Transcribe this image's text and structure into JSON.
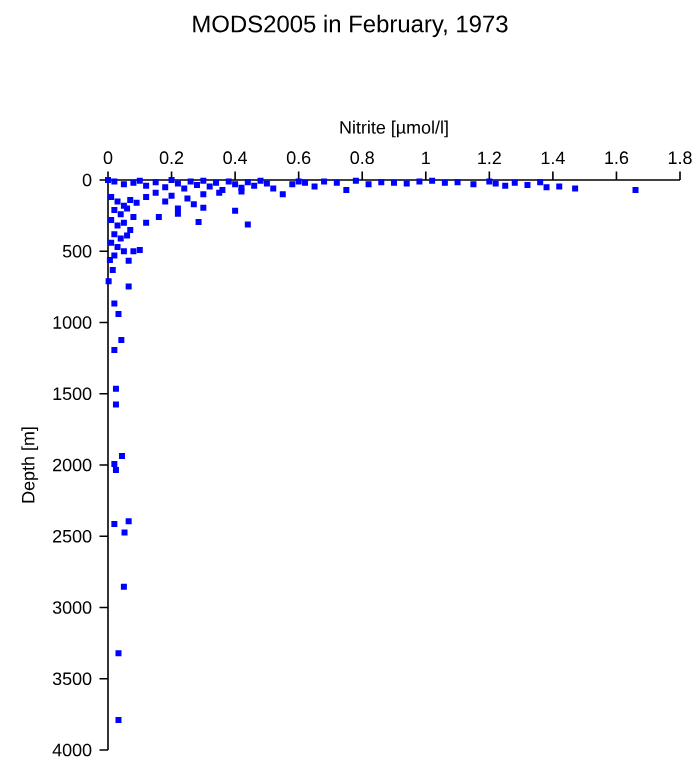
{
  "chart_data": {
    "type": "scatter",
    "title": "MODS2005 in February, 1973",
    "xlabel": "Nitrite [µmol/l]",
    "ylabel": "Depth [m]",
    "xlim": [
      0,
      1.8
    ],
    "xticks": [
      0,
      0.2,
      0.4,
      0.6,
      0.8,
      1,
      1.2,
      1.4,
      1.6,
      1.8
    ],
    "ylim": [
      4000,
      0
    ],
    "yticks": [
      0,
      500,
      1000,
      1500,
      2000,
      2500,
      3000,
      3500,
      4000
    ],
    "marker": "square",
    "grid": false,
    "series": [
      {
        "color": "#0000ff",
        "x": [
          0.0,
          0.02,
          0.05,
          0.08,
          0.1,
          0.12,
          0.15,
          0.18,
          0.2,
          0.22,
          0.24,
          0.26,
          0.28,
          0.3,
          0.32,
          0.34,
          0.36,
          0.38,
          0.4,
          0.42,
          0.44,
          0.46,
          0.48,
          0.5,
          0.52,
          0.55,
          0.58,
          0.6,
          0.62,
          0.65,
          0.68,
          0.72,
          0.75,
          0.78,
          0.82,
          0.86,
          0.9,
          0.94,
          0.98,
          1.02,
          1.06,
          1.1,
          1.15,
          1.2,
          1.22,
          1.25,
          1.28,
          1.32,
          1.36,
          1.38,
          1.42,
          1.47,
          1.66,
          0.12,
          0.15,
          0.18,
          0.2,
          0.25,
          0.3,
          0.35,
          0.42,
          0.27,
          0.22,
          0.3,
          0.4,
          0.285,
          0.44,
          0.22,
          0.16,
          0.12,
          0.01,
          0.03,
          0.05,
          0.07,
          0.09,
          0.02,
          0.04,
          0.06,
          0.08,
          0.01,
          0.03,
          0.05,
          0.07,
          0.02,
          0.04,
          0.06,
          0.01,
          0.03,
          0.05,
          0.02,
          0.1,
          0.08,
          0.006,
          0.065,
          0.015,
          0.002,
          0.065,
          0.02,
          0.033,
          0.042,
          0.02,
          0.025,
          0.025,
          0.044,
          0.02,
          0.025,
          0.02,
          0.065,
          0.052,
          0.05,
          0.033,
          0.033
        ],
        "values": [
          0,
          10,
          30,
          20,
          5,
          40,
          15,
          50,
          0,
          25,
          60,
          10,
          35,
          5,
          45,
          20,
          70,
          10,
          30,
          55,
          15,
          40,
          5,
          25,
          60,
          100,
          30,
          10,
          20,
          45,
          10,
          20,
          70,
          5,
          30,
          15,
          20,
          25,
          10,
          5,
          20,
          15,
          30,
          10,
          25,
          40,
          20,
          35,
          15,
          50,
          45,
          60,
          70,
          120,
          90,
          150,
          110,
          130,
          100,
          90,
          80,
          170,
          200,
          195,
          215,
          295,
          313,
          237,
          260,
          300,
          120,
          150,
          180,
          140,
          160,
          210,
          240,
          200,
          260,
          280,
          320,
          300,
          350,
          380,
          410,
          390,
          440,
          470,
          500,
          530,
          491,
          500,
          561,
          566,
          632,
          711,
          748,
          866,
          941,
          1123,
          1193,
          1464,
          1576,
          1937,
          1993,
          2035,
          2414,
          2395,
          2474,
          2854,
          3321,
          3789
        ]
      }
    ]
  }
}
